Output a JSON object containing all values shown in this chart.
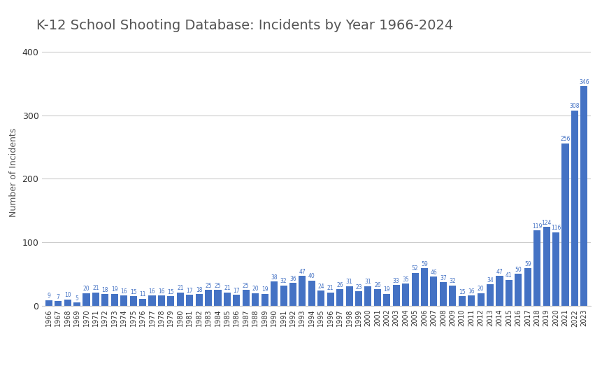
{
  "title": "K-12 School Shooting Database: Incidents by Year 1966-2024",
  "ylabel": "Number of Incidents",
  "years": [
    1966,
    1967,
    1968,
    1969,
    1970,
    1971,
    1972,
    1973,
    1974,
    1975,
    1976,
    1977,
    1978,
    1979,
    1980,
    1981,
    1982,
    1983,
    1984,
    1985,
    1986,
    1987,
    1988,
    1989,
    1990,
    1991,
    1992,
    1993,
    1994,
    1995,
    1996,
    1997,
    1998,
    1999,
    2000,
    2001,
    2002,
    2003,
    2004,
    2005,
    2006,
    2007,
    2008,
    2009,
    2010,
    2011,
    2012,
    2013,
    2014,
    2015,
    2016,
    2017,
    2018,
    2019,
    2020,
    2021,
    2022,
    2023
  ],
  "values": [
    9,
    7,
    10,
    5,
    20,
    21,
    18,
    19,
    16,
    15,
    11,
    16,
    16,
    15,
    21,
    17,
    18,
    25,
    25,
    21,
    17,
    25,
    20,
    19,
    38,
    32,
    36,
    47,
    40,
    24,
    21,
    26,
    31,
    23,
    31,
    26,
    19,
    33,
    35,
    52,
    59,
    46,
    37,
    32,
    15,
    16,
    20,
    34,
    47,
    41,
    50,
    59,
    119,
    124,
    116,
    256,
    308,
    346
  ],
  "bar_color": "#4472C4",
  "label_color": "#4472C4",
  "background_color": "#ffffff",
  "grid_color": "#cccccc",
  "title_color": "#555555",
  "ylim": [
    0,
    420
  ],
  "yticks": [
    0,
    100,
    200,
    300,
    400
  ],
  "title_fontsize": 14,
  "bar_label_fontsize": 5.5,
  "ylabel_fontsize": 9,
  "xtick_fontsize": 7,
  "ytick_fontsize": 9
}
